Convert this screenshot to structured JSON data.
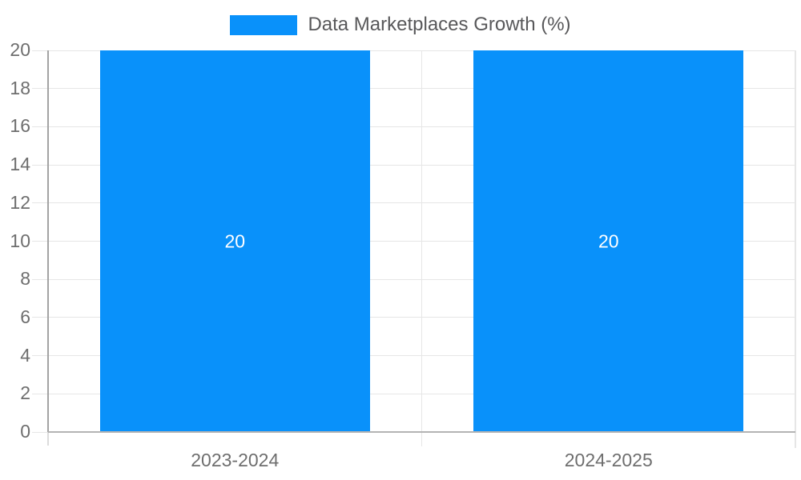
{
  "legend": {
    "label": "Data Marketplaces Growth (%)"
  },
  "chart_data": {
    "type": "bar",
    "title": "Data Marketplaces Growth (%)",
    "categories": [
      "2023-2024",
      "2024-2025"
    ],
    "series": [
      {
        "name": "Data Marketplaces Growth (%)",
        "values": [
          20,
          20
        ]
      }
    ],
    "bar_value_labels": [
      "20",
      "20"
    ],
    "xlabel": "",
    "ylabel": "",
    "ylim": [
      0,
      20
    ],
    "yticks": [
      0,
      2,
      4,
      6,
      8,
      10,
      12,
      14,
      16,
      18,
      20
    ],
    "grid": true,
    "legend_position": "top-center",
    "colors": {
      "bar": "#0991fa",
      "grid": "#e6e6e6",
      "axis_line": "#a3a3a3",
      "axis_extension": "#dcdcdc",
      "baseline": "#b3b3b3",
      "tick_label": "#6e6e6e",
      "legend_text": "#58585a",
      "bar_label": "#ffffff",
      "background": "#ffffff"
    }
  }
}
